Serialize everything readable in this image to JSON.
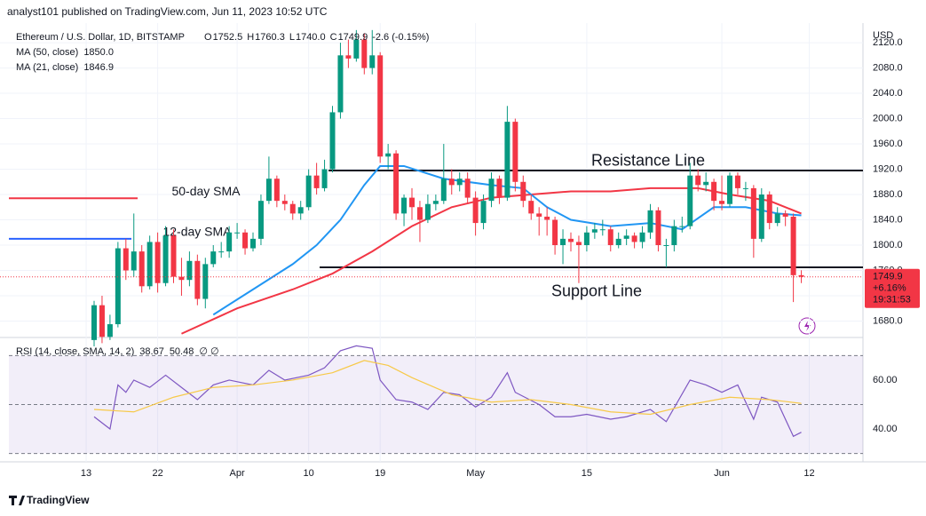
{
  "header": {
    "publisher": "analyst101 published on TradingView.com, Jun 11, 2023 10:52 UTC"
  },
  "footer": {
    "brand": "TradingView"
  },
  "chart_data": [
    {
      "type": "candlestick",
      "title": "Ethereum / U.S. Dollar, 1D, BITSTAMP",
      "currency": "USD",
      "ohlc_labels": [
        "O",
        "H",
        "L",
        "C"
      ],
      "ohlc_values": [
        "1752.5",
        "1760.3",
        "1740.0",
        "1749.9"
      ],
      "change": "-2.6 (-0.15%)",
      "open": [
        1650,
        1705,
        1655,
        1675,
        1795,
        1760,
        1790,
        1735,
        1805,
        1740,
        1815,
        1750,
        1745,
        1775,
        1715,
        1770,
        1790,
        1790,
        1820,
        1820,
        1795,
        1810,
        1870,
        1905,
        1870,
        1865,
        1850,
        1860,
        1910,
        1890,
        1920,
        2010,
        2100,
        2095,
        2125,
        2080,
        2100,
        1940,
        1945,
        1850,
        1875,
        1860,
        1840,
        1865,
        1870,
        1905,
        1895,
        1905,
        1875,
        1835,
        1870,
        1905,
        1875,
        1995,
        1900,
        1870,
        1850,
        1845,
        1840,
        1800,
        1810,
        1805,
        1800,
        1820,
        1825,
        1825,
        1800,
        1810,
        1815,
        1805,
        1820,
        1855,
        1800,
        1800,
        1830,
        1830,
        1910,
        1895,
        1900,
        1870,
        1865,
        1910,
        1890,
        1890,
        1810,
        1880,
        1835,
        1850,
        1845,
        1752.5
      ],
      "high": [
        1712,
        1720,
        1690,
        1805,
        1810,
        1850,
        1800,
        1815,
        1820,
        1830,
        1825,
        1780,
        1790,
        1785,
        1780,
        1800,
        1805,
        1830,
        1835,
        1825,
        1820,
        1880,
        1940,
        1910,
        1880,
        1870,
        1870,
        1920,
        1930,
        1935,
        2020,
        2120,
        2125,
        2140,
        2135,
        2140,
        2105,
        1960,
        1950,
        1880,
        1890,
        1870,
        1880,
        1880,
        1960,
        1920,
        1915,
        1915,
        1885,
        1880,
        1915,
        1910,
        2020,
        2000,
        1910,
        1880,
        1860,
        1860,
        1845,
        1825,
        1820,
        1815,
        1830,
        1835,
        1840,
        1830,
        1820,
        1825,
        1820,
        1830,
        1865,
        1860,
        1810,
        1840,
        1845,
        1930,
        1920,
        1915,
        1905,
        1910,
        1915,
        1915,
        1900,
        1895,
        1890,
        1885,
        1860,
        1855,
        1850,
        1760.3
      ],
      "low": [
        1640,
        1645,
        1650,
        1670,
        1745,
        1750,
        1725,
        1730,
        1725,
        1735,
        1740,
        1720,
        1735,
        1705,
        1700,
        1765,
        1780,
        1780,
        1810,
        1785,
        1790,
        1800,
        1865,
        1860,
        1855,
        1840,
        1840,
        1855,
        1880,
        1885,
        1915,
        2000,
        2080,
        2090,
        2070,
        2070,
        1930,
        1920,
        1840,
        1830,
        1840,
        1805,
        1835,
        1855,
        1865,
        1880,
        1885,
        1865,
        1815,
        1825,
        1860,
        1865,
        1870,
        1885,
        1860,
        1840,
        1815,
        1815,
        1785,
        1770,
        1790,
        1740,
        1790,
        1810,
        1815,
        1790,
        1795,
        1800,
        1795,
        1795,
        1810,
        1790,
        1765,
        1790,
        1820,
        1825,
        1885,
        1885,
        1855,
        1855,
        1860,
        1880,
        1870,
        1780,
        1805,
        1825,
        1830,
        1830,
        1710,
        1740
      ],
      "close": [
        1705,
        1655,
        1675,
        1795,
        1760,
        1790,
        1735,
        1805,
        1740,
        1815,
        1750,
        1745,
        1775,
        1715,
        1770,
        1790,
        1790,
        1820,
        1820,
        1795,
        1810,
        1870,
        1905,
        1870,
        1865,
        1850,
        1860,
        1910,
        1890,
        1920,
        2010,
        2100,
        2095,
        2125,
        2080,
        2100,
        1940,
        1945,
        1850,
        1875,
        1860,
        1840,
        1865,
        1870,
        1905,
        1895,
        1905,
        1875,
        1835,
        1870,
        1905,
        1875,
        1995,
        1900,
        1870,
        1850,
        1845,
        1840,
        1800,
        1810,
        1805,
        1800,
        1820,
        1825,
        1825,
        1800,
        1810,
        1815,
        1805,
        1820,
        1855,
        1800,
        1800,
        1830,
        1830,
        1910,
        1895,
        1900,
        1870,
        1865,
        1910,
        1890,
        1890,
        1810,
        1880,
        1835,
        1850,
        1845,
        1752.5,
        1749.9
      ],
      "up_color": "#089981",
      "down_color": "#f23645",
      "ylim": [
        1654,
        2151
      ],
      "yticks": [
        {
          "value": 1680,
          "label": "1680.0"
        },
        {
          "value": 1720,
          "label": "1720.0"
        },
        {
          "value": 1760,
          "label": "1760.0"
        },
        {
          "value": 1800,
          "label": "1800.0"
        },
        {
          "value": 1840,
          "label": "1840.0"
        },
        {
          "value": 1880,
          "label": "1880.0"
        },
        {
          "value": 1920,
          "label": "1920.0"
        },
        {
          "value": 1960,
          "label": "1960.0"
        },
        {
          "value": 2000,
          "label": "2000.0"
        },
        {
          "value": 2040,
          "label": "2040.0"
        },
        {
          "value": 2080,
          "label": "2080.0"
        },
        {
          "value": 2120,
          "label": "2120.0"
        }
      ],
      "xticks": [
        {
          "value": -1,
          "label": "13"
        },
        {
          "value": 8,
          "label": "22"
        },
        {
          "value": 18,
          "label": "Apr"
        },
        {
          "value": 27,
          "label": "10"
        },
        {
          "value": 36,
          "label": "19"
        },
        {
          "value": 48,
          "label": "May"
        },
        {
          "value": 62,
          "label": "15"
        },
        {
          "value": 79,
          "label": "Jun"
        },
        {
          "value": 90,
          "label": "12"
        }
      ],
      "overlays": [
        {
          "name": "MA (50, close)",
          "value_label": "1850.0",
          "color": "#f23645",
          "x": [
            11,
            18,
            25,
            30,
            35,
            40,
            45,
            50,
            55,
            60,
            65,
            70,
            76,
            80,
            85,
            89
          ],
          "values": [
            1660,
            1700,
            1730,
            1755,
            1790,
            1830,
            1860,
            1875,
            1880,
            1885,
            1885,
            1890,
            1890,
            1880,
            1870,
            1850
          ]
        },
        {
          "name": "MA (21, close)",
          "value_label": "1846.9",
          "color": "#2196f3",
          "x": [
            15,
            20,
            25,
            28,
            31,
            34,
            36,
            39,
            44,
            50,
            54,
            57,
            60,
            65,
            70,
            74,
            78,
            82,
            86,
            89
          ],
          "values": [
            1690,
            1730,
            1770,
            1800,
            1840,
            1895,
            1925,
            1925,
            1905,
            1895,
            1890,
            1860,
            1840,
            1830,
            1835,
            1825,
            1860,
            1860,
            1850,
            1847
          ]
        }
      ],
      "annotations": [
        {
          "text": "Resistance  Line",
          "price": 1918,
          "color": "#131722"
        },
        {
          "text": "Support Line",
          "price": 1765,
          "color": "#131722"
        },
        {
          "text": "50-day SMA",
          "price": 1874,
          "color": "#f23645"
        },
        {
          "text": "12-day SMA",
          "price": 1810,
          "color": "#2962ff"
        }
      ],
      "last_price": {
        "value": 1749.9,
        "change": "+6.16%",
        "countdown": "19:31:53",
        "color": "#f23645"
      }
    },
    {
      "type": "line",
      "title": "RSI (14, close, SMA, 14, 2)",
      "extra": "∅  ∅",
      "series": [
        {
          "value_label": "38.67",
          "color": "#7e57c2",
          "x": [
            0,
            2,
            3,
            4,
            5,
            7,
            9,
            11,
            13,
            15,
            17,
            20,
            22,
            24,
            27,
            29,
            31,
            33,
            35,
            36,
            38,
            40,
            42,
            44,
            46,
            48,
            50,
            52,
            53,
            56,
            58,
            60,
            62,
            65,
            67,
            70,
            72,
            75,
            77,
            79,
            81,
            83,
            84,
            86,
            88,
            89
          ],
          "values": [
            45,
            40,
            58,
            55,
            60,
            57,
            62,
            57,
            52,
            58,
            60,
            58,
            64,
            60,
            62,
            65,
            72,
            74,
            73,
            60,
            52,
            51,
            48,
            55,
            54,
            49,
            53,
            63,
            55,
            50,
            45,
            45,
            46,
            44,
            45,
            48,
            43,
            60,
            58,
            55,
            58,
            44,
            53,
            51,
            37,
            38.67
          ]
        },
        {
          "value_label": "50.48",
          "color": "#f7c948",
          "x": [
            0,
            5,
            10,
            15,
            20,
            25,
            30,
            34,
            37,
            40,
            45,
            50,
            55,
            60,
            65,
            70,
            75,
            80,
            85,
            89
          ],
          "values": [
            48,
            47,
            53,
            57,
            58,
            60,
            63,
            68,
            66,
            61,
            54,
            51,
            52,
            50,
            47,
            46,
            50,
            53,
            52,
            50.48
          ]
        }
      ],
      "ylim": [
        27.3,
        75.6
      ],
      "yticks": [
        {
          "value": 40,
          "label": "40.00"
        },
        {
          "value": 60,
          "label": "60.00"
        }
      ],
      "levels": [
        70,
        50,
        30
      ]
    }
  ]
}
